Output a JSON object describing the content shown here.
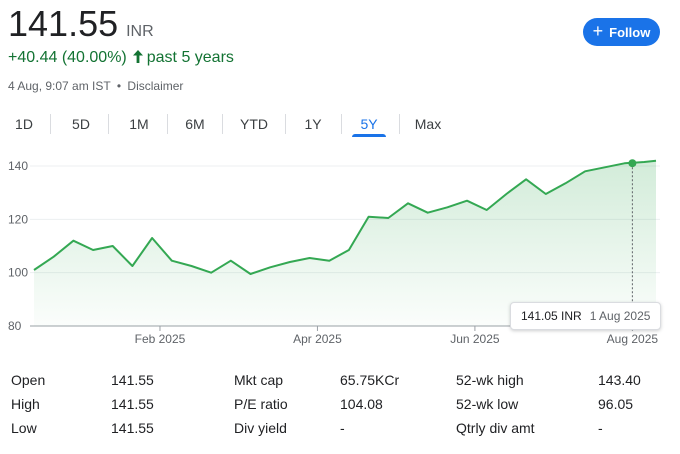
{
  "quote": {
    "price": "141.55",
    "currency": "INR",
    "change": "+40.44 (40.00%)",
    "change_arrow": "arrow-up-icon",
    "period": "past 5 years",
    "timestamp": "4 Aug, 9:07 am IST",
    "separator": "•",
    "disclaimer": "Disclaimer"
  },
  "follow_button": {
    "label": "Follow",
    "icon": "plus-icon",
    "color": "#1a73e8"
  },
  "tabs": [
    {
      "label": "1D",
      "active": false
    },
    {
      "label": "5D",
      "active": false
    },
    {
      "label": "1M",
      "active": false
    },
    {
      "label": "6M",
      "active": false
    },
    {
      "label": "YTD",
      "active": false
    },
    {
      "label": "1Y",
      "active": false
    },
    {
      "label": "5Y",
      "active": true
    },
    {
      "label": "Max",
      "active": false
    }
  ],
  "chart_data": {
    "type": "area",
    "y_ticks": [
      "140",
      "120",
      "100",
      "80"
    ],
    "y_tick_values": [
      140,
      120,
      100,
      80
    ],
    "ylim": [
      80,
      144
    ],
    "x_ticks": [
      "Feb 2025",
      "Apr 2025",
      "Jun 2025",
      "Aug 2025"
    ],
    "x_tick_positions": [
      6.0,
      10.0,
      14.0,
      18.0
    ],
    "xlim": [
      2.8,
      18.6
    ],
    "series": [
      {
        "x": [
          2.8,
          3.3,
          3.8,
          4.3,
          4.8,
          5.3,
          5.8,
          6.3,
          6.8,
          7.3,
          7.8,
          8.3,
          8.8,
          9.3,
          9.8,
          10.3,
          10.8,
          11.3,
          11.8,
          12.3,
          12.8,
          13.3,
          13.8,
          14.3,
          14.8,
          15.3,
          15.8,
          16.3,
          16.8,
          17.3,
          17.8,
          18.3,
          18.6
        ],
        "values": [
          101,
          106,
          112,
          108.5,
          110,
          102.5,
          113,
          104.5,
          102.5,
          100,
          104.5,
          99.5,
          102,
          104,
          105.5,
          104.5,
          108.5,
          121,
          120.5,
          126,
          122.5,
          124.5,
          127,
          123.5,
          129.5,
          135,
          129.5,
          133.5,
          138,
          139.5,
          141,
          141.5,
          142
        ]
      }
    ],
    "line_color": "#34a853",
    "fill_color": "#e6f4ea",
    "grid": true,
    "baseline": 80,
    "highlight": {
      "x": 18.0,
      "y": 141.05
    }
  },
  "tooltip": {
    "price": "141.05 INR",
    "date": "1 Aug 2025"
  },
  "stats": {
    "open_label": "Open",
    "open_value": "141.55",
    "high_label": "High",
    "high_value": "141.55",
    "low_label": "Low",
    "low_value": "141.55",
    "mktcap_label": "Mkt cap",
    "mktcap_value": "65.75KCr",
    "pe_label": "P/E ratio",
    "pe_value": "104.08",
    "divyield_label": "Div yield",
    "divyield_value": "-",
    "wkhigh_label": "52-wk high",
    "wkhigh_value": "143.40",
    "wklow_label": "52-wk low",
    "wklow_value": "96.05",
    "qtrly_label": "Qtrly div amt",
    "qtrly_value": "-"
  }
}
